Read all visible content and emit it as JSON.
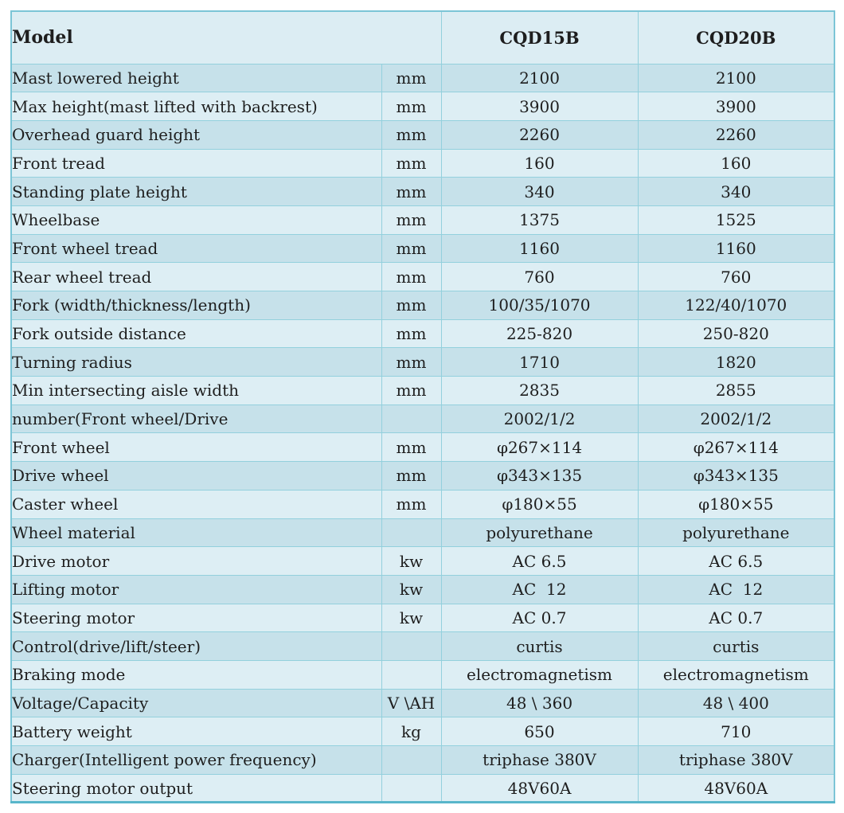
{
  "colors": {
    "row_dark": "#c6e1ea",
    "row_light": "#ddeef4",
    "header_bg": "#dcedf3",
    "border": "#93d0dd",
    "outer_border": "#7cc5d6",
    "bottom_border": "#58b6ca",
    "text": "#1e1e1e",
    "page_background": "#ffffff"
  },
  "table": {
    "header": {
      "model_label": "Model",
      "model_1": "CQD15B",
      "model_2": "CQD20B"
    },
    "rows": [
      {
        "name": "Mast lowered height",
        "unit": "mm",
        "cqd15b": "2100",
        "cqd20b": "2100"
      },
      {
        "name": "Max height(mast lifted with backrest)",
        "unit": "mm",
        "cqd15b": "3900",
        "cqd20b": "3900"
      },
      {
        "name": "Overhead guard height",
        "unit": "mm",
        "cqd15b": "2260",
        "cqd20b": "2260"
      },
      {
        "name": "Front tread",
        "unit": "mm",
        "cqd15b": "160",
        "cqd20b": "160"
      },
      {
        "name": "Standing plate height",
        "unit": "mm",
        "cqd15b": "340",
        "cqd20b": "340"
      },
      {
        "name": "Wheelbase",
        "unit": "mm",
        "cqd15b": "1375",
        "cqd20b": "1525"
      },
      {
        "name": "Front wheel tread",
        "unit": "mm",
        "cqd15b": "1160",
        "cqd20b": "1160"
      },
      {
        "name": "Rear wheel tread",
        "unit": "mm",
        "cqd15b": "760",
        "cqd20b": "760"
      },
      {
        "name": "Fork (width/thickness/length)",
        "unit": "mm",
        "cqd15b": "100/35/1070",
        "cqd20b": "122/40/1070"
      },
      {
        "name": "Fork outside distance",
        "unit": "mm",
        "cqd15b": "225-820",
        "cqd20b": "250-820"
      },
      {
        "name": "Turning radius",
        "unit": "mm",
        "cqd15b": "1710",
        "cqd20b": "1820"
      },
      {
        "name": "Min intersecting aisle width",
        "unit": "mm",
        "cqd15b": "2835",
        "cqd20b": "2855"
      },
      {
        "name": "number(Front wheel/Drive",
        "unit": "",
        "cqd15b": "2002/1/2",
        "cqd20b": "2002/1/2"
      },
      {
        "name": "Front wheel",
        "unit": "mm",
        "cqd15b": "φ267×114",
        "cqd20b": "φ267×114"
      },
      {
        "name": "Drive wheel",
        "unit": "mm",
        "cqd15b": "φ343×135",
        "cqd20b": "φ343×135"
      },
      {
        "name": "Caster wheel",
        "unit": "mm",
        "cqd15b": "φ180×55",
        "cqd20b": "φ180×55"
      },
      {
        "name": "Wheel material",
        "unit": "",
        "cqd15b": "polyurethane",
        "cqd20b": "polyurethane"
      },
      {
        "name": "Drive motor",
        "unit": "kw",
        "cqd15b": "AC 6.5",
        "cqd20b": "AC 6.5"
      },
      {
        "name": "Lifting motor",
        "unit": "kw",
        "cqd15b": "AC  12",
        "cqd20b": "AC  12"
      },
      {
        "name": "Steering motor",
        "unit": "kw",
        "cqd15b": "AC 0.7",
        "cqd20b": "AC 0.7"
      },
      {
        "name": "Control(drive/lift/steer)",
        "unit": "",
        "cqd15b": "curtis",
        "cqd20b": "curtis"
      },
      {
        "name": "Braking mode",
        "unit": "",
        "cqd15b": "electromagnetism",
        "cqd20b": "electromagnetism"
      },
      {
        "name": "Voltage/Capacity",
        "unit": "V \\AH",
        "cqd15b": "48 \\ 360",
        "cqd20b": "48 \\ 400"
      },
      {
        "name": "Battery weight",
        "unit": "kg",
        "cqd15b": "650",
        "cqd20b": "710"
      },
      {
        "name": "Charger(Intelligent power frequency)",
        "unit": "",
        "cqd15b": "triphase 380V",
        "cqd20b": "triphase 380V"
      },
      {
        "name": "Steering motor output",
        "unit": "",
        "cqd15b": "48V60A",
        "cqd20b": "48V60A"
      }
    ]
  }
}
